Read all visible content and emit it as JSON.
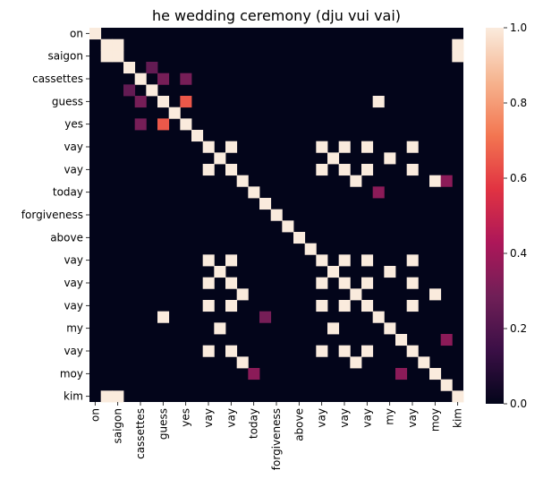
{
  "chart_data": {
    "type": "heatmap",
    "title": "he wedding ceremony (dju vui vai)",
    "tokens": [
      "on",
      "saigon",
      "saigon",
      "cassettes",
      "cassettes",
      "guess",
      "guess",
      "yes",
      "yes",
      "vay",
      "vay",
      "vay",
      "vay",
      "today",
      "today",
      "forgiveness",
      "forgiveness",
      "above",
      "above",
      "vay",
      "vay",
      "vay",
      "vay",
      "vay",
      "vay",
      "my",
      "my",
      "vay",
      "vay",
      "moy",
      "moy",
      "kim",
      "kim"
    ],
    "x_tick_labels": [
      "on",
      "saigon",
      "cassettes",
      "guess",
      "yes",
      "vay",
      "vay",
      "today",
      "forgiveness",
      "above",
      "vay",
      "vay",
      "vay",
      "my",
      "vay",
      "moy",
      "kim"
    ],
    "y_tick_labels": [
      "on",
      "saigon",
      "cassettes",
      "guess",
      "yes",
      "vay",
      "vay",
      "today",
      "forgiveness",
      "above",
      "vay",
      "vay",
      "vay",
      "my",
      "vay",
      "moy",
      "kim"
    ],
    "colorbar": {
      "vmin": 0.0,
      "vmax": 1.0,
      "ticks": [
        "0.0",
        "0.2",
        "0.4",
        "0.6",
        "0.8",
        "1.0"
      ],
      "colors": [
        "#03051a",
        "#3b0f46",
        "#701f57",
        "#ad1759",
        "#e13342",
        "#f37651",
        "#f6b48f",
        "#faebdd"
      ]
    },
    "cells": [
      [
        0,
        0,
        1.0
      ],
      [
        1,
        1,
        1.0
      ],
      [
        1,
        2,
        1.0
      ],
      [
        1,
        32,
        1.0
      ],
      [
        2,
        1,
        1.0
      ],
      [
        2,
        2,
        1.0
      ],
      [
        2,
        32,
        1.0
      ],
      [
        3,
        3,
        1.0
      ],
      [
        3,
        5,
        0.25
      ],
      [
        4,
        4,
        1.0
      ],
      [
        4,
        6,
        0.3
      ],
      [
        4,
        8,
        0.3
      ],
      [
        5,
        3,
        0.25
      ],
      [
        5,
        5,
        1.0
      ],
      [
        6,
        4,
        0.3
      ],
      [
        6,
        6,
        1.0
      ],
      [
        6,
        8,
        0.65
      ],
      [
        6,
        25,
        1.0
      ],
      [
        7,
        7,
        1.0
      ],
      [
        8,
        4,
        0.3
      ],
      [
        8,
        6,
        0.65
      ],
      [
        8,
        8,
        1.0
      ],
      [
        9,
        9,
        1.0
      ],
      [
        10,
        10,
        1.0
      ],
      [
        10,
        12,
        1.0
      ],
      [
        10,
        20,
        1.0
      ],
      [
        10,
        22,
        1.0
      ],
      [
        10,
        24,
        1.0
      ],
      [
        10,
        28,
        1.0
      ],
      [
        11,
        11,
        1.0
      ],
      [
        11,
        21,
        1.0
      ],
      [
        11,
        26,
        1.0
      ],
      [
        12,
        10,
        1.0
      ],
      [
        12,
        12,
        1.0
      ],
      [
        12,
        20,
        1.0
      ],
      [
        12,
        22,
        1.0
      ],
      [
        12,
        24,
        1.0
      ],
      [
        12,
        28,
        1.0
      ],
      [
        13,
        13,
        1.0
      ],
      [
        13,
        23,
        1.0
      ],
      [
        13,
        30,
        1.0
      ],
      [
        13,
        31,
        0.35
      ],
      [
        14,
        14,
        1.0
      ],
      [
        14,
        25,
        0.35
      ],
      [
        15,
        15,
        1.0
      ],
      [
        16,
        16,
        1.0
      ],
      [
        17,
        17,
        1.0
      ],
      [
        18,
        18,
        1.0
      ],
      [
        19,
        19,
        1.0
      ],
      [
        20,
        10,
        1.0
      ],
      [
        20,
        12,
        1.0
      ],
      [
        20,
        20,
        1.0
      ],
      [
        20,
        22,
        1.0
      ],
      [
        20,
        24,
        1.0
      ],
      [
        20,
        28,
        1.0
      ],
      [
        21,
        11,
        1.0
      ],
      [
        21,
        21,
        1.0
      ],
      [
        21,
        26,
        1.0
      ],
      [
        22,
        10,
        1.0
      ],
      [
        22,
        12,
        1.0
      ],
      [
        22,
        20,
        1.0
      ],
      [
        22,
        22,
        1.0
      ],
      [
        22,
        24,
        1.0
      ],
      [
        22,
        28,
        1.0
      ],
      [
        23,
        13,
        1.0
      ],
      [
        23,
        23,
        1.0
      ],
      [
        23,
        30,
        1.0
      ],
      [
        24,
        10,
        1.0
      ],
      [
        24,
        12,
        1.0
      ],
      [
        24,
        20,
        1.0
      ],
      [
        24,
        22,
        1.0
      ],
      [
        24,
        24,
        1.0
      ],
      [
        24,
        28,
        1.0
      ],
      [
        25,
        6,
        1.0
      ],
      [
        25,
        15,
        0.3
      ],
      [
        25,
        25,
        1.0
      ],
      [
        26,
        11,
        1.0
      ],
      [
        26,
        21,
        1.0
      ],
      [
        26,
        26,
        1.0
      ],
      [
        27,
        27,
        1.0
      ],
      [
        27,
        31,
        0.35
      ],
      [
        28,
        10,
        1.0
      ],
      [
        28,
        12,
        1.0
      ],
      [
        28,
        20,
        1.0
      ],
      [
        28,
        22,
        1.0
      ],
      [
        28,
        24,
        1.0
      ],
      [
        28,
        28,
        1.0
      ],
      [
        29,
        13,
        1.0
      ],
      [
        29,
        23,
        1.0
      ],
      [
        29,
        29,
        1.0
      ],
      [
        30,
        14,
        0.35
      ],
      [
        30,
        27,
        0.35
      ],
      [
        30,
        30,
        1.0
      ],
      [
        31,
        31,
        1.0
      ],
      [
        32,
        1,
        1.0
      ],
      [
        32,
        2,
        1.0
      ],
      [
        32,
        32,
        1.0
      ]
    ]
  }
}
